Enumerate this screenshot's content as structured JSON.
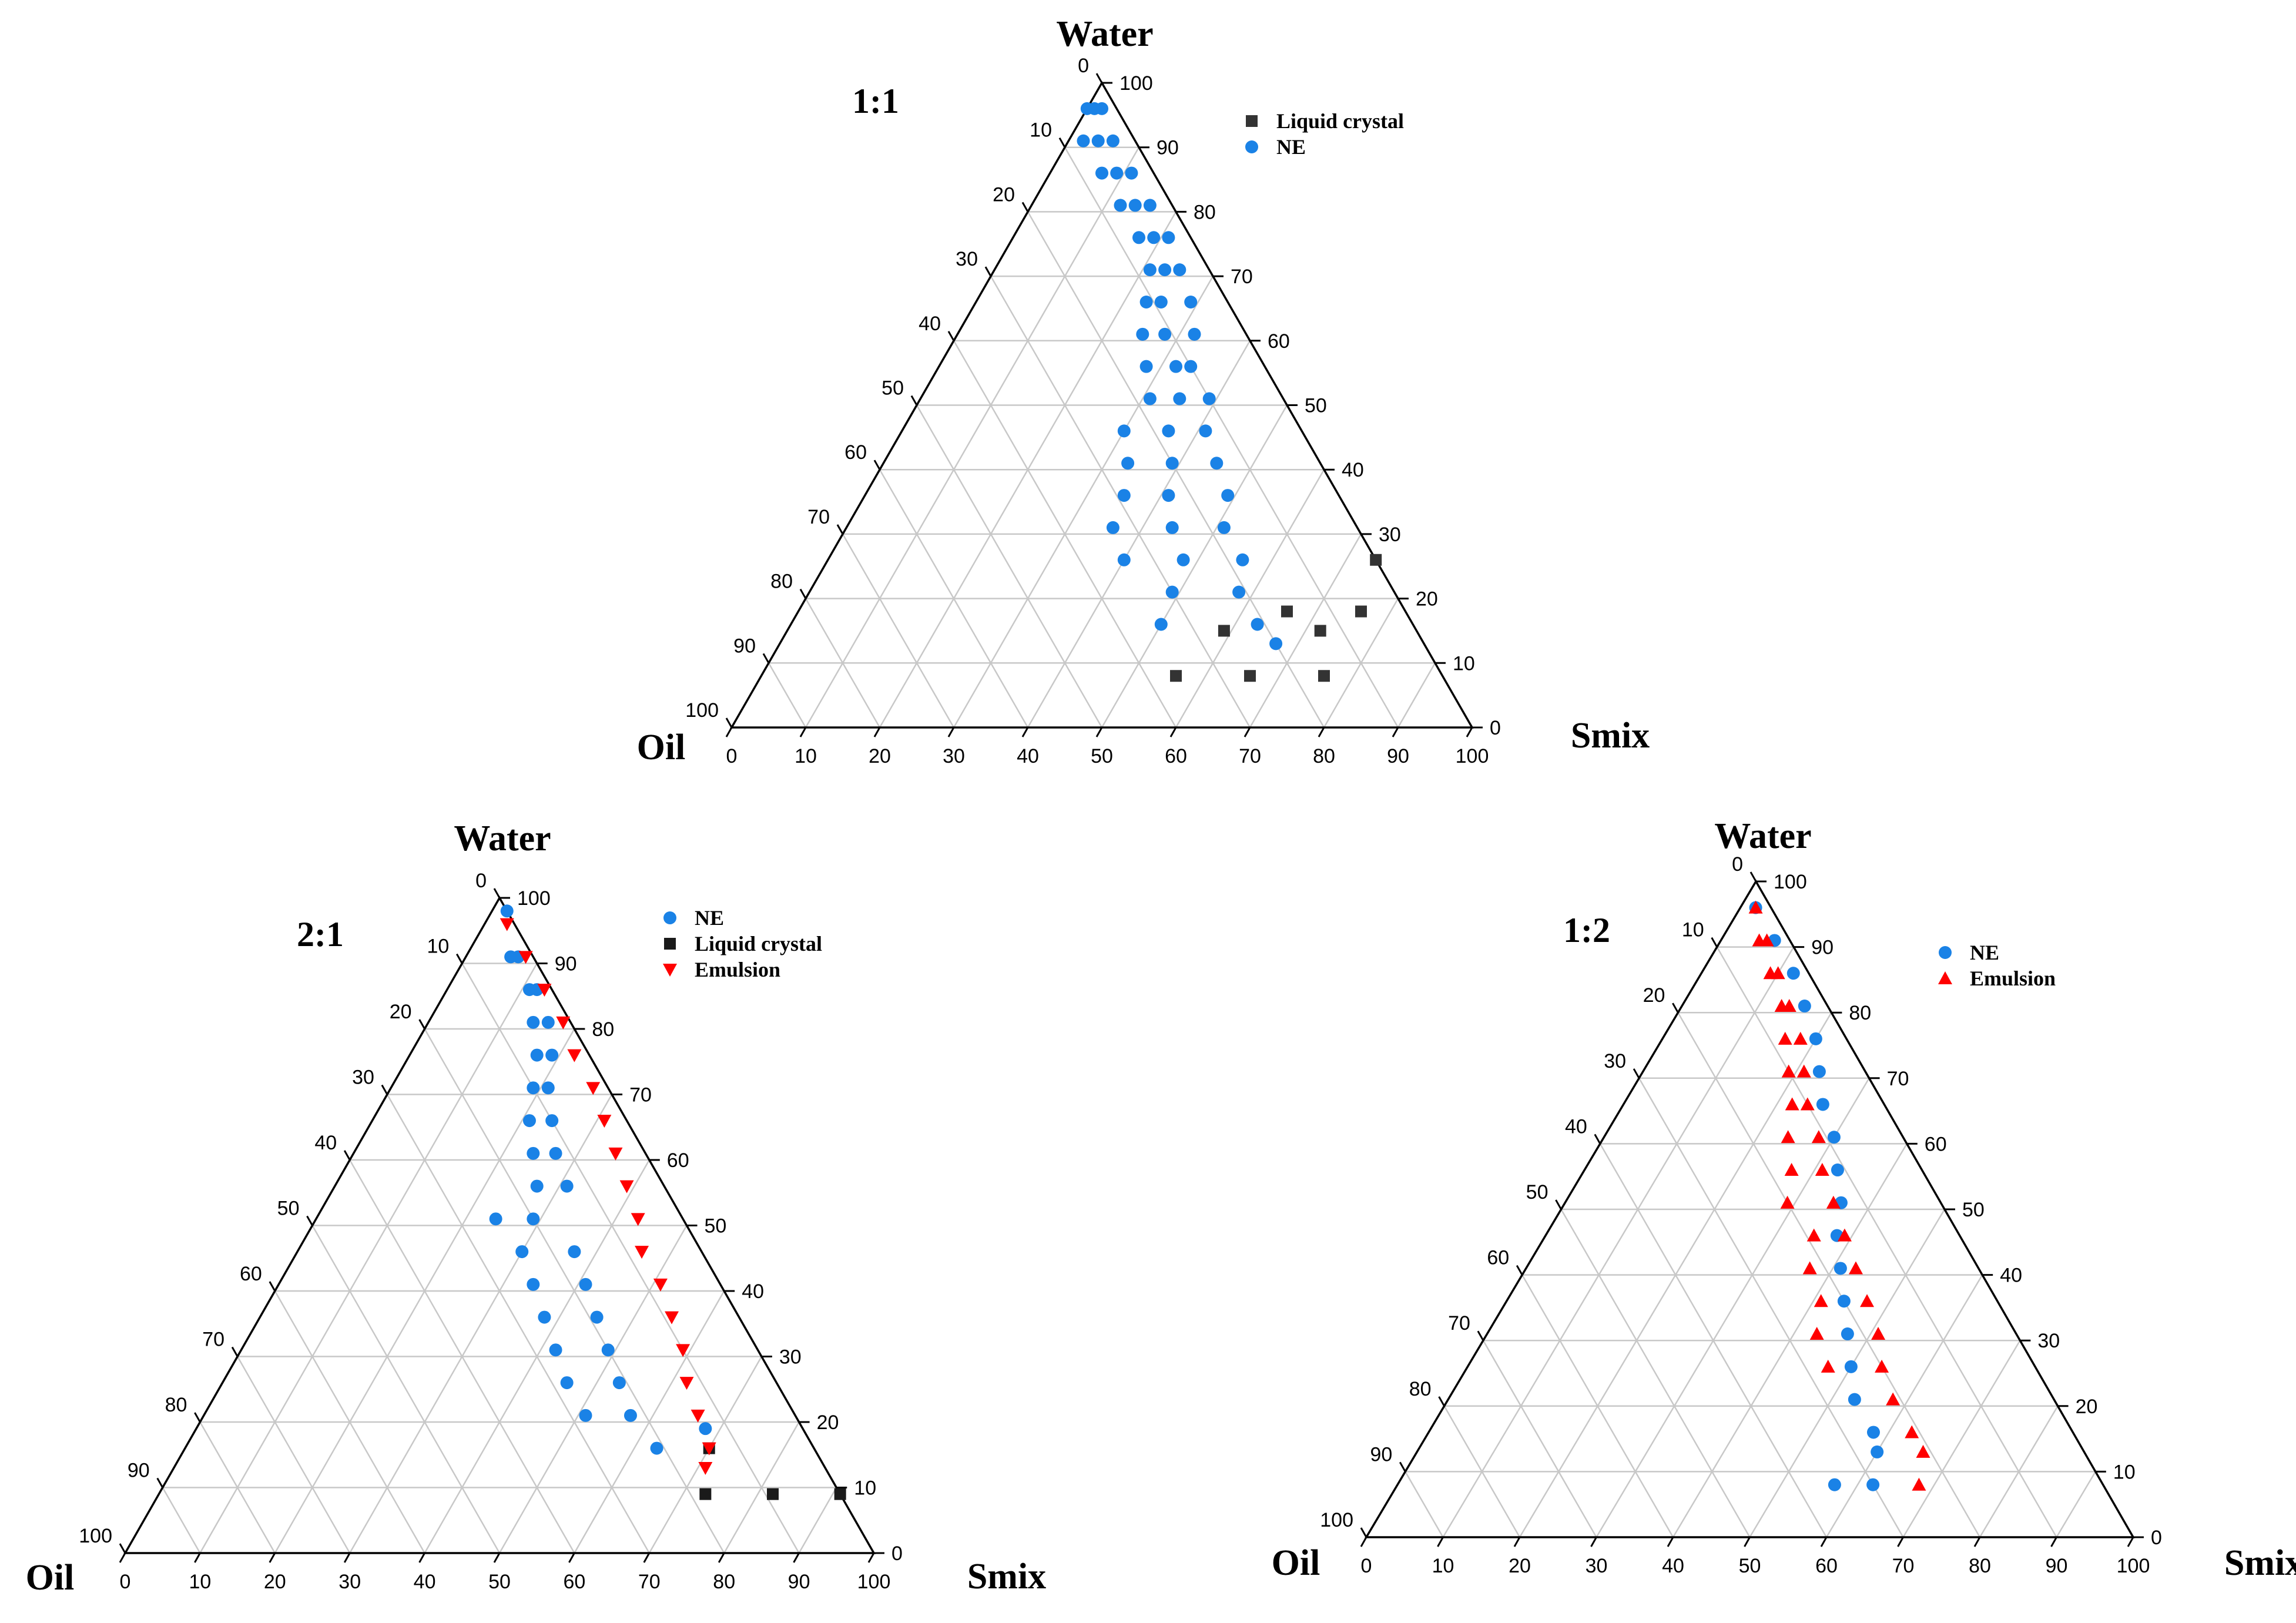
{
  "colors": {
    "ne": "#1a82e6",
    "liquid_crystal": "#333333",
    "emulsion": "#ff0000",
    "grid": "#c8c8c8",
    "axis": "#000000"
  },
  "chart_data": [
    {
      "type": "ternary-scatter",
      "ratio_label": "1:1",
      "apex_labels": {
        "top": "Water",
        "left": "Oil",
        "right": "Smix"
      },
      "ticks": {
        "bottom": [
          "0",
          "10",
          "20",
          "30",
          "40",
          "50",
          "60",
          "70",
          "80",
          "90",
          "100"
        ],
        "right": [
          "0",
          "10",
          "20",
          "30",
          "40",
          "50",
          "60",
          "70",
          "80",
          "90",
          "100"
        ],
        "left": [
          "0",
          "10",
          "20",
          "30",
          "40",
          "50",
          "60",
          "70",
          "80",
          "90",
          "100"
        ]
      },
      "legend": [
        {
          "label": "Liquid crystal",
          "marker": "square",
          "color": "#333333"
        },
        {
          "label": "NE",
          "marker": "circle",
          "color": "#1a82e6"
        }
      ],
      "series": [
        {
          "name": "NE",
          "marker": "circle",
          "color": "#1a82e6",
          "points": [
            [
              96,
              2
            ],
            [
              96,
              3
            ],
            [
              96,
              4
            ],
            [
              91,
              3
            ],
            [
              91,
              5
            ],
            [
              91,
              7
            ],
            [
              86,
              3
            ],
            [
              86,
              5
            ],
            [
              86,
              7
            ],
            [
              81,
              3
            ],
            [
              81,
              5
            ],
            [
              81,
              7
            ],
            [
              76,
              3
            ],
            [
              76,
              5
            ],
            [
              76,
              7
            ],
            [
              71,
              4
            ],
            [
              71,
              6
            ],
            [
              71,
              8
            ],
            [
              66,
              5
            ],
            [
              66,
              9
            ],
            [
              66,
              11
            ],
            [
              61,
              7
            ],
            [
              61,
              11
            ],
            [
              61,
              14
            ],
            [
              56,
              10
            ],
            [
              56,
              12
            ],
            [
              56,
              16
            ],
            [
              51,
              10
            ],
            [
              51,
              14
            ],
            [
              51,
              18
            ],
            [
              46,
              13
            ],
            [
              46,
              18
            ],
            [
              46,
              24
            ],
            [
              41,
              14
            ],
            [
              41,
              20
            ],
            [
              41,
              26
            ],
            [
              36,
              15
            ],
            [
              36,
              23
            ],
            [
              36,
              29
            ],
            [
              31,
              18
            ],
            [
              31,
              25
            ],
            [
              31,
              33
            ],
            [
              26,
              18
            ],
            [
              26,
              26
            ],
            [
              26,
              34
            ],
            [
              21,
              21
            ],
            [
              21,
              30
            ],
            [
              16,
              21
            ],
            [
              16,
              34
            ],
            [
              13,
              20
            ]
          ]
        },
        {
          "name": "Liquid crystal",
          "marker": "square",
          "color": "#333333",
          "points": [
            [
              26,
              0
            ],
            [
              18,
              6
            ],
            [
              18,
              16
            ],
            [
              15,
              13
            ],
            [
              15,
              26
            ],
            [
              8,
              16
            ],
            [
              8,
              26
            ],
            [
              8,
              36
            ]
          ]
        }
      ]
    },
    {
      "type": "ternary-scatter",
      "ratio_label": "2:1",
      "apex_labels": {
        "top": "Water",
        "left": "Oil",
        "right": "Smix"
      },
      "ticks": {
        "bottom": [
          "0",
          "10",
          "20",
          "30",
          "40",
          "50",
          "60",
          "70",
          "80",
          "90",
          "100"
        ],
        "right": [
          "0",
          "10",
          "20",
          "30",
          "40",
          "50",
          "60",
          "70",
          "80",
          "90",
          "100"
        ],
        "left": [
          "0",
          "10",
          "20",
          "30",
          "40",
          "50",
          "60",
          "70",
          "80",
          "90",
          "100"
        ]
      },
      "legend": [
        {
          "label": "NE",
          "marker": "circle",
          "color": "#1a82e6"
        },
        {
          "label": "Liquid crystal",
          "marker": "square",
          "color": "#1a1a1a"
        },
        {
          "label": "Emulsion",
          "marker": "triangle-down",
          "color": "#ff0000"
        }
      ],
      "series": [
        {
          "name": "NE",
          "marker": "circle",
          "color": "#1a82e6",
          "points": [
            [
              98,
              0
            ],
            [
              91,
              2
            ],
            [
              91,
              3
            ],
            [
              86,
              2
            ],
            [
              86,
              3
            ],
            [
              81,
              3
            ],
            [
              81,
              5
            ],
            [
              76,
              5
            ],
            [
              76,
              7
            ],
            [
              71,
              8
            ],
            [
              71,
              10
            ],
            [
              66,
              10
            ],
            [
              66,
              13
            ],
            [
              61,
              12
            ],
            [
              61,
              15
            ],
            [
              56,
              13
            ],
            [
              56,
              17
            ],
            [
              51,
              20
            ],
            [
              51,
              25
            ],
            [
              46,
              17
            ],
            [
              46,
              24
            ],
            [
              41,
              18
            ],
            [
              41,
              25
            ],
            [
              36,
              19
            ],
            [
              36,
              26
            ],
            [
              31,
              20
            ],
            [
              31,
              27
            ],
            [
              26,
              21
            ],
            [
              26,
              28
            ],
            [
              21,
              22
            ],
            [
              21,
              28
            ],
            [
              19,
              13
            ],
            [
              16,
              21
            ]
          ]
        },
        {
          "name": "Liquid crystal",
          "marker": "square",
          "color": "#1a1a1a",
          "points": [
            [
              16,
              14
            ],
            [
              9,
              0
            ],
            [
              9,
              18
            ],
            [
              9,
              9
            ]
          ]
        },
        {
          "name": "Emulsion",
          "marker": "triangle-down",
          "color": "#ff0000",
          "points": [
            [
              96,
              1
            ],
            [
              91,
              1
            ],
            [
              86,
              1
            ],
            [
              81,
              1
            ],
            [
              76,
              2
            ],
            [
              71,
              2
            ],
            [
              66,
              3
            ],
            [
              61,
              4
            ],
            [
              56,
              5
            ],
            [
              51,
              6
            ],
            [
              46,
              8
            ],
            [
              41,
              8
            ],
            [
              36,
              9
            ],
            [
              31,
              10
            ],
            [
              26,
              12
            ],
            [
              21,
              13
            ],
            [
              16,
              14
            ],
            [
              13,
              16
            ]
          ]
        }
      ]
    },
    {
      "type": "ternary-scatter",
      "ratio_label": "1:2",
      "apex_labels": {
        "top": "Water",
        "left": "Oil",
        "right": "Smix"
      },
      "ticks": {
        "bottom": [
          "0",
          "10",
          "20",
          "30",
          "40",
          "50",
          "60",
          "70",
          "80",
          "90",
          "100"
        ],
        "right": [
          "0",
          "10",
          "20",
          "30",
          "40",
          "50",
          "60",
          "70",
          "80",
          "90",
          "100"
        ],
        "left": [
          "0",
          "10",
          "20",
          "30",
          "40",
          "50",
          "60",
          "70",
          "80",
          "90",
          "100"
        ]
      },
      "legend": [
        {
          "label": "NE",
          "marker": "circle",
          "color": "#1a82e6"
        },
        {
          "label": "Emulsion",
          "marker": "triangle-up",
          "color": "#ff0000"
        }
      ],
      "series": [
        {
          "name": "NE",
          "marker": "circle",
          "color": "#1a82e6",
          "points": [
            [
              96,
              2
            ],
            [
              91,
              2
            ],
            [
              86,
              2
            ],
            [
              81,
              3
            ],
            [
              76,
              4
            ],
            [
              71,
              6
            ],
            [
              66,
              8
            ],
            [
              61,
              9
            ],
            [
              56,
              11
            ],
            [
              51,
              13
            ],
            [
              46,
              16
            ],
            [
              41,
              18
            ],
            [
              36,
              20
            ],
            [
              31,
              22
            ],
            [
              26,
              24
            ],
            [
              21,
              26
            ],
            [
              16,
              26
            ],
            [
              13,
              27
            ],
            [
              8,
              30
            ],
            [
              8,
              35
            ]
          ]
        },
        {
          "name": "Emulsion",
          "marker": "triangle-up",
          "color": "#ff0000",
          "points": [
            [
              96,
              2
            ],
            [
              91,
              3
            ],
            [
              91,
              4
            ],
            [
              86,
              4
            ],
            [
              86,
              5
            ],
            [
              81,
              5
            ],
            [
              81,
              6
            ],
            [
              76,
              6
            ],
            [
              76,
              8
            ],
            [
              71,
              8
            ],
            [
              71,
              10
            ],
            [
              66,
              10
            ],
            [
              66,
              12
            ],
            [
              61,
              11
            ],
            [
              61,
              15
            ],
            [
              56,
              13
            ],
            [
              56,
              17
            ],
            [
              51,
              14
            ],
            [
              51,
              20
            ],
            [
              46,
              15
            ],
            [
              46,
              19
            ],
            [
              41,
              16
            ],
            [
              41,
              22
            ],
            [
              36,
              17
            ],
            [
              36,
              23
            ],
            [
              31,
              18
            ],
            [
              31,
              26
            ],
            [
              26,
              20
            ],
            [
              26,
              27
            ],
            [
              21,
              21
            ],
            [
              16,
              21
            ],
            [
              13,
              21
            ],
            [
              8,
              24
            ]
          ]
        }
      ]
    }
  ]
}
